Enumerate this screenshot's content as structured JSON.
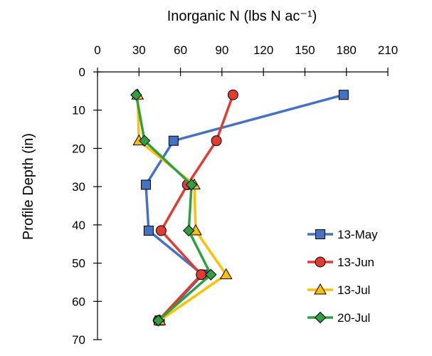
{
  "chart_data": {
    "type": "line",
    "title": "",
    "xlabel": "Inorganic N (lbs N ac⁻¹)",
    "ylabel": "Profile Depth (in)",
    "x_axis_position": "top",
    "y_axis_inverted": true,
    "xlim": [
      0,
      210
    ],
    "ylim": [
      0,
      70
    ],
    "x_ticks": [
      0,
      30,
      60,
      90,
      120,
      150,
      180,
      210
    ],
    "y_ticks": [
      0,
      10,
      20,
      30,
      40,
      50,
      60,
      70
    ],
    "grid": false,
    "legend_position": "right",
    "series": [
      {
        "name": "13-May",
        "color": "#4472C4",
        "marker": "square",
        "points": [
          {
            "x": 178,
            "y": 6
          },
          {
            "x": 55,
            "y": 18
          },
          {
            "x": 35,
            "y": 29.5
          },
          {
            "x": 37,
            "y": 41.5
          },
          {
            "x": 76,
            "y": 53
          },
          {
            "x": 45,
            "y": 65
          }
        ]
      },
      {
        "name": "13-Jun",
        "color": "#E03C31",
        "marker": "circle",
        "points": [
          {
            "x": 98,
            "y": 6
          },
          {
            "x": 86,
            "y": 18
          },
          {
            "x": 65,
            "y": 29.5
          },
          {
            "x": 46,
            "y": 41.5
          },
          {
            "x": 75,
            "y": 53
          },
          {
            "x": 44,
            "y": 65
          }
        ]
      },
      {
        "name": "13-Jul",
        "color": "#FFC000",
        "marker": "triangle",
        "points": [
          {
            "x": 29,
            "y": 6
          },
          {
            "x": 30,
            "y": 18
          },
          {
            "x": 70,
            "y": 29.5
          },
          {
            "x": 71,
            "y": 41.5
          },
          {
            "x": 93,
            "y": 53
          },
          {
            "x": 45,
            "y": 65
          }
        ]
      },
      {
        "name": "20-Jul",
        "color": "#2EA043",
        "marker": "diamond",
        "points": [
          {
            "x": 28,
            "y": 6
          },
          {
            "x": 34,
            "y": 18
          },
          {
            "x": 68,
            "y": 29.5
          },
          {
            "x": 66,
            "y": 41.5
          },
          {
            "x": 82,
            "y": 53
          },
          {
            "x": 44,
            "y": 65
          }
        ]
      }
    ]
  }
}
